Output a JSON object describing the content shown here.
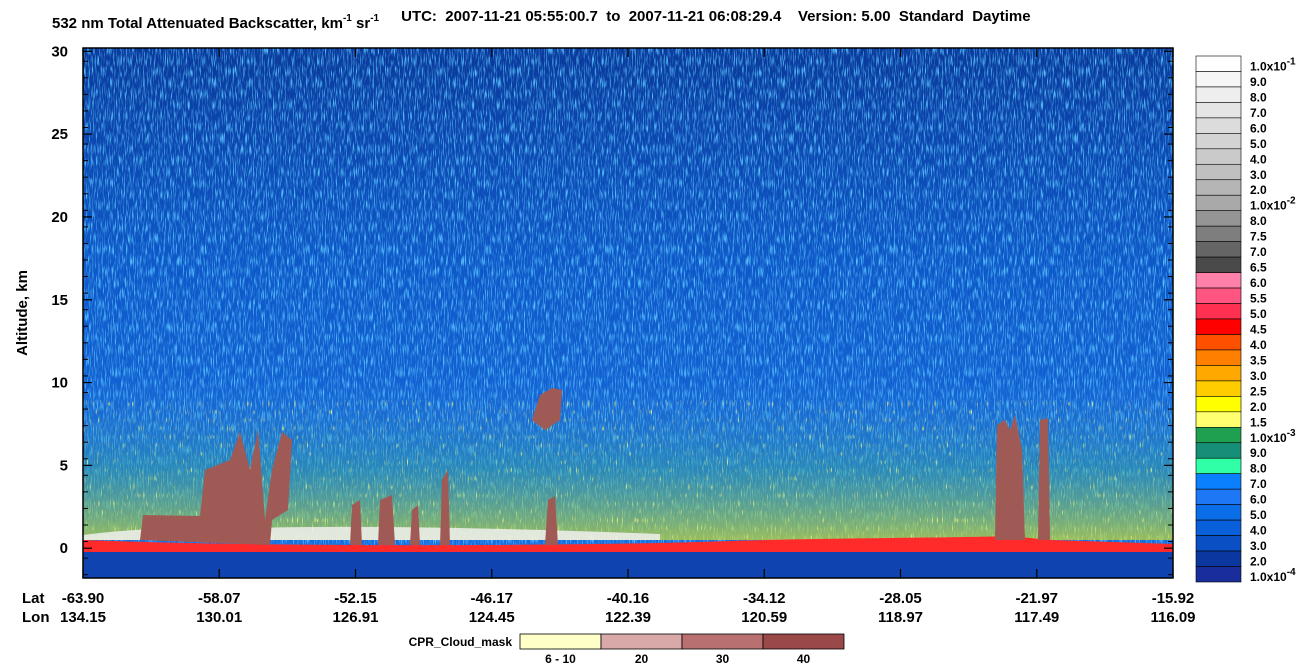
{
  "chart_data": {
    "type": "heatmap",
    "title_segments": [
      {
        "text": "532 nm Total Attenuated Backscatter, km"
      },
      {
        "sup": "-1"
      },
      {
        "text": " sr"
      },
      {
        "sup": "-1"
      }
    ],
    "subtitle": "UTC:  2007-11-21 05:55:00.7  to  2007-11-21 06:08:29.4    Version: 5.00  Standard  Daytime",
    "ylabel": "Altitude, km",
    "ylim": [
      -1.8,
      30.2
    ],
    "yticks": [
      0,
      5,
      10,
      15,
      20,
      25,
      30
    ],
    "x_row_names": [
      "Lat",
      "Lon"
    ],
    "lat_labels": [
      "-63.90",
      "-58.07",
      "-52.15",
      "-46.17",
      "-40.16",
      "-34.12",
      "-28.05",
      "-21.97",
      "-15.92"
    ],
    "lon_labels": [
      "134.15",
      "130.01",
      "126.91",
      "124.45",
      "122.39",
      "120.59",
      "118.97",
      "117.49",
      "116.09"
    ],
    "colorbar": [
      {
        "label": "1.0x10",
        "exponent": "-1",
        "color": "#ffffff"
      },
      {
        "label": "9.0",
        "color": "#f6f6f6"
      },
      {
        "label": "8.0",
        "color": "#eeeeee"
      },
      {
        "label": "7.0",
        "color": "#e5e5e5"
      },
      {
        "label": "6.0",
        "color": "#dcdcdc"
      },
      {
        "label": "5.0",
        "color": "#d3d3d3"
      },
      {
        "label": "4.0",
        "color": "#cacaca"
      },
      {
        "label": "3.0",
        "color": "#c0c0c0"
      },
      {
        "label": "2.0",
        "color": "#b5b5b5"
      },
      {
        "label": "1.0x10",
        "exponent": "-2",
        "color": "#a9a9a9"
      },
      {
        "label": "8.0",
        "color": "#959595"
      },
      {
        "label": "7.5",
        "color": "#7e7e7e"
      },
      {
        "label": "7.0",
        "color": "#656565"
      },
      {
        "label": "6.5",
        "color": "#4a4a4a"
      },
      {
        "label": "6.0",
        "color": "#ff80a8"
      },
      {
        "label": "5.5",
        "color": "#ff5580"
      },
      {
        "label": "5.0",
        "color": "#ff3050"
      },
      {
        "label": "4.5",
        "color": "#ff0000"
      },
      {
        "label": "4.0",
        "color": "#ff5000"
      },
      {
        "label": "3.5",
        "color": "#ff7f00"
      },
      {
        "label": "3.0",
        "color": "#ffa800"
      },
      {
        "label": "2.5",
        "color": "#ffcc00"
      },
      {
        "label": "2.0",
        "color": "#ffff00"
      },
      {
        "label": "1.5",
        "color": "#ffff70"
      },
      {
        "label": "1.0x10",
        "exponent": "-3",
        "color": "#1fa050"
      },
      {
        "label": "9.0",
        "color": "#168f78"
      },
      {
        "label": "8.0",
        "color": "#30ffa8"
      },
      {
        "label": "7.0",
        "color": "#0a80ff"
      },
      {
        "label": "6.0",
        "color": "#1e78f5"
      },
      {
        "label": "5.0",
        "color": "#0a6ee8"
      },
      {
        "label": "4.0",
        "color": "#0a60da"
      },
      {
        "label": "3.0",
        "color": "#0a4fc4"
      },
      {
        "label": "2.0",
        "color": "#0a38a0"
      },
      {
        "label": "1.0x10",
        "exponent": "-4",
        "color": "#1a2d9c"
      }
    ],
    "cpr_legend": {
      "title": "CPR_Cloud_mask",
      "entries": [
        {
          "label": "6 - 10",
          "color": "#ffffc8"
        },
        {
          "label": "20",
          "color": "#d9a8a8"
        },
        {
          "label": "30",
          "color": "#b87070"
        },
        {
          "label": "40",
          "color": "#9a4848"
        }
      ]
    }
  }
}
